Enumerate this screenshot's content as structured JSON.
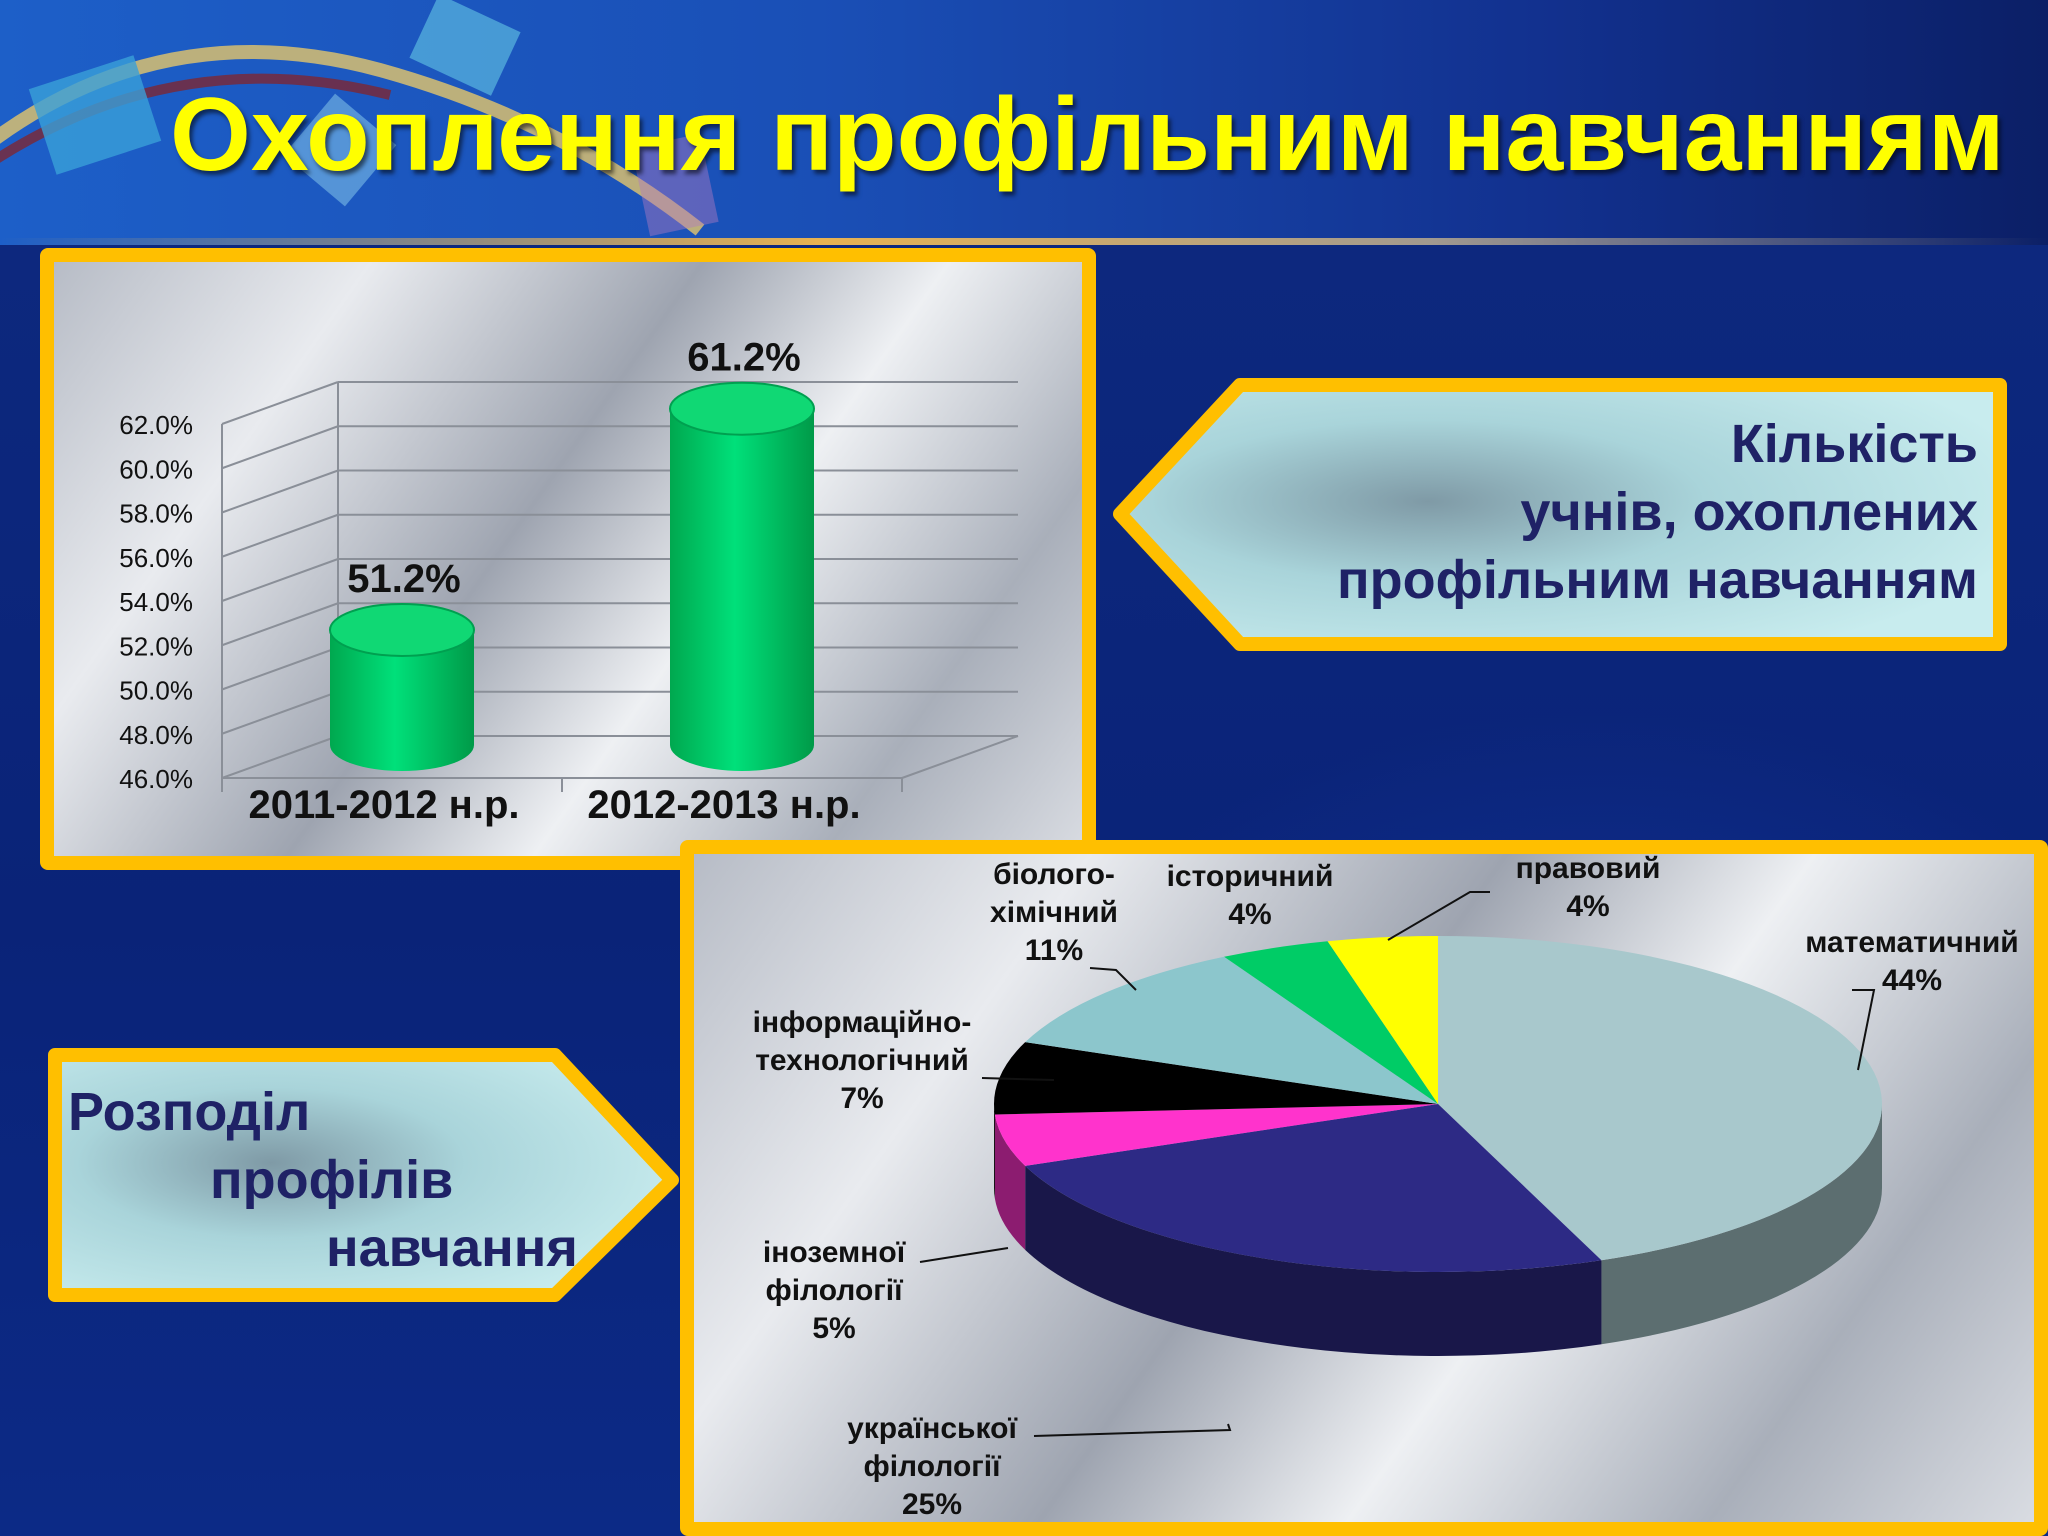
{
  "title": "Охоплення профільним навчанням",
  "callouts": {
    "count": [
      "Кількість",
      "учнів, охоплених",
      "профільним навчанням"
    ],
    "distribution": [
      "Розподіл",
      "профілів",
      "навчання"
    ]
  },
  "colors": {
    "title": "#ffff00",
    "panel_border": "#ffbf00",
    "bar_fill": "#00cc66",
    "callout_text": "#1f2266"
  },
  "chart_data": [
    {
      "type": "bar",
      "title": "",
      "categories": [
        "2011-2012 н.р.",
        "2012-2013 н.р."
      ],
      "values": [
        51.2,
        61.2
      ],
      "data_labels": [
        "51.2%",
        "61.2%"
      ],
      "ylim": [
        46.0,
        62.0
      ],
      "yticks": [
        "46.0%",
        "48.0%",
        "50.0%",
        "52.0%",
        "54.0%",
        "56.0%",
        "58.0%",
        "60.0%",
        "62.0%"
      ],
      "grid": true,
      "three_d": true
    },
    {
      "type": "pie",
      "title": "",
      "three_d": true,
      "slices": [
        {
          "name": "математичний",
          "value": 44,
          "label": "44%",
          "color": "#a8c8cc"
        },
        {
          "name": "української філології",
          "value": 25,
          "label": "25%",
          "color": "#2d2a85"
        },
        {
          "name": "іноземної філології",
          "value": 5,
          "label": "5%",
          "color": "#ff33cc"
        },
        {
          "name": "інформаційно-технологічний",
          "value": 7,
          "label": "7%",
          "color": "#000000"
        },
        {
          "name": "біолого-хімічний",
          "value": 11,
          "label": "11%",
          "color": "#8cc6cc"
        },
        {
          "name": "історичний",
          "value": 4,
          "label": "4%",
          "color": "#00cc66"
        },
        {
          "name": "правовий",
          "value": 4,
          "label": "4%",
          "color": "#ffff00"
        }
      ],
      "slice_labels": [
        [
          "математичний",
          "44%"
        ],
        [
          "української",
          "філології",
          "25%"
        ],
        [
          "іноземної",
          "філології",
          "5%"
        ],
        [
          "інформаційно-",
          "технологічний",
          "7%"
        ],
        [
          "біолого-",
          "хімічний",
          "11%"
        ],
        [
          "історичний",
          "4%"
        ],
        [
          "правовий",
          "4%"
        ]
      ]
    }
  ]
}
